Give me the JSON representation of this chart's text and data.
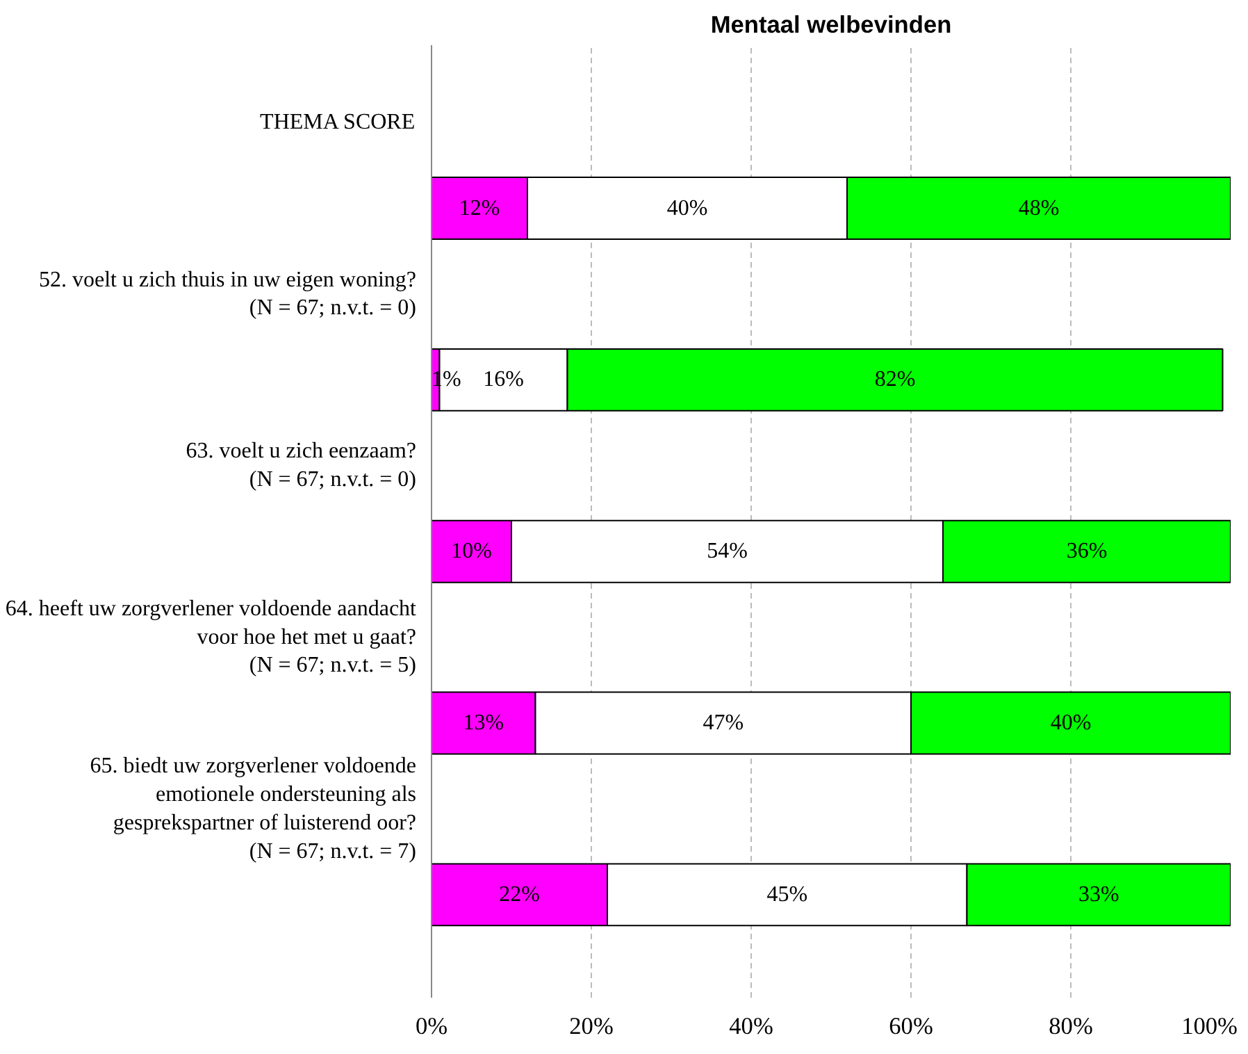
{
  "chart_data": {
    "type": "bar",
    "orientation": "horizontal",
    "stacked": true,
    "title": "Mentaal welbevinden",
    "categories": [
      "THEMA SCORE",
      "52. voelt u zich thuis in uw eigen woning?\n(N = 67; n.v.t. = 0)",
      "63. voelt u zich eenzaam?\n(N = 67; n.v.t. = 0)",
      "64. heeft uw zorgverlener voldoende aandacht\nvoor hoe het met u gaat?\n(N = 67; n.v.t. = 5)",
      "65. biedt uw zorgverlener voldoende\nemotionele ondersteuning als\ngesprekspartner of luisterend oor?\n(N = 67; n.v.t. = 7)"
    ],
    "series": [
      {
        "color": "#ff00ff",
        "values": [
          12,
          1,
          10,
          13,
          22
        ],
        "value_labels": [
          "12%",
          "1%",
          "10%",
          "13%",
          "22%"
        ]
      },
      {
        "color": "#ffffff",
        "values": [
          40,
          16,
          54,
          47,
          45
        ],
        "value_labels": [
          "40%",
          "16%",
          "54%",
          "47%",
          "45%"
        ]
      },
      {
        "color": "#00ff00",
        "values": [
          48,
          82,
          36,
          40,
          33
        ],
        "value_labels": [
          "48%",
          "82%",
          "36%",
          "40%",
          "33%"
        ]
      }
    ],
    "xlim": [
      0,
      100
    ],
    "xticks": [
      {
        "value": 0,
        "label": "0%"
      },
      {
        "value": 20,
        "label": "20%"
      },
      {
        "value": 40,
        "label": "40%"
      },
      {
        "value": 60,
        "label": "60%"
      },
      {
        "value": 80,
        "label": "80%"
      },
      {
        "value": 100,
        "label": "100%"
      }
    ],
    "grid": "x"
  }
}
